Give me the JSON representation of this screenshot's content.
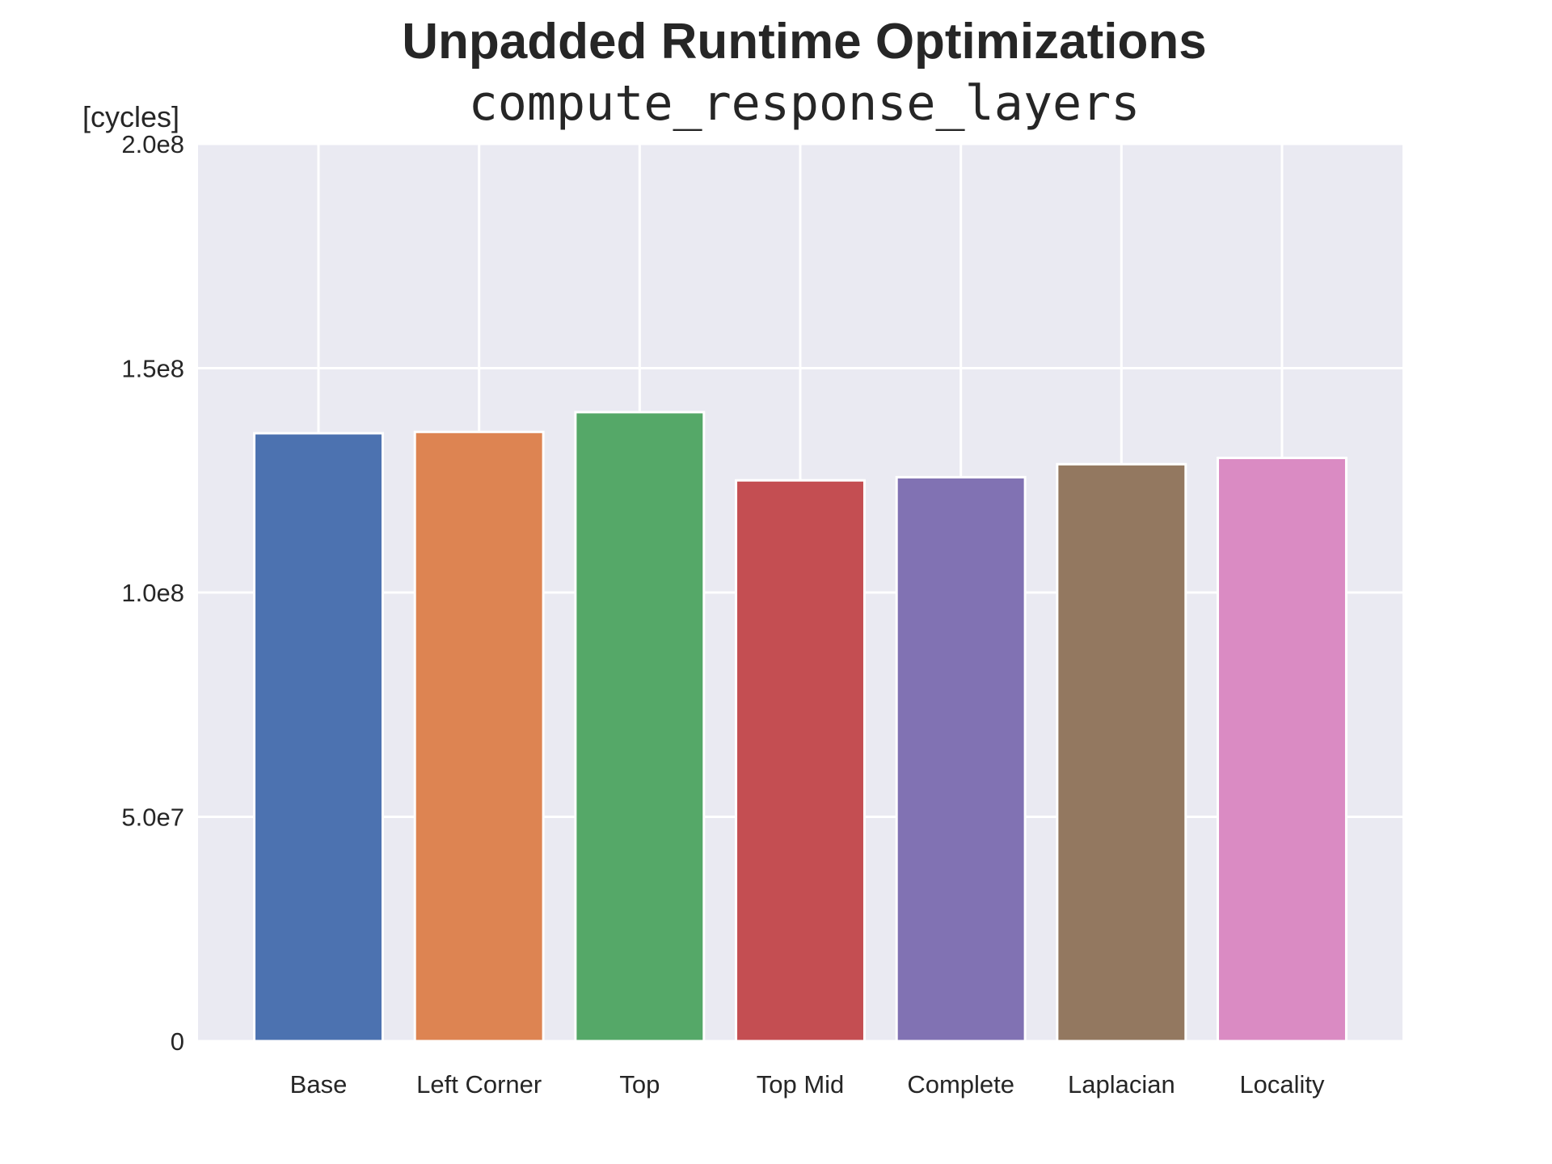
{
  "chart_data": {
    "type": "bar",
    "title": "Unpadded Runtime Optimizations",
    "subtitle": "compute_response_layers",
    "ylabel": "[cycles]",
    "xlabel": "",
    "categories": [
      "Base",
      "Left Corner",
      "Top",
      "Top Mid",
      "Complete",
      "Laplacian",
      "Locality"
    ],
    "values": [
      135500000,
      135800000,
      140200000,
      125000000,
      125700000,
      128600000,
      130000000
    ],
    "colors": [
      "#4c72b0",
      "#dd8452",
      "#55a868",
      "#c44e52",
      "#8172b3",
      "#937860",
      "#da8bc3"
    ],
    "ylim": [
      0,
      200000000
    ],
    "yticks": [
      0,
      50000000,
      100000000,
      150000000,
      200000000
    ],
    "ytick_labels": [
      "0",
      "5.0e7",
      "1.0e8",
      "1.5e8",
      "2.0e8"
    ],
    "grid": true,
    "plot_background": "#eaeaf2",
    "grid_color": "#ffffff"
  }
}
